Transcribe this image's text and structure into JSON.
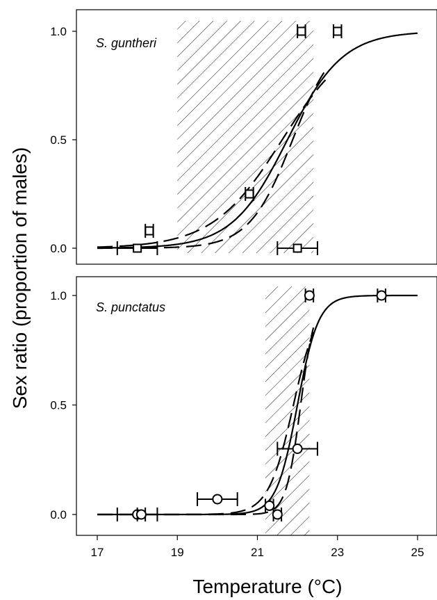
{
  "figure": {
    "ylabel": "Sex ratio (proportion of males)",
    "xlabel": "Temperature (°C)",
    "x_ticks": [
      17,
      19,
      21,
      23,
      25
    ],
    "y_ticks": [
      "0.0",
      "0.5",
      "1.0"
    ]
  },
  "chart_data": [
    {
      "type": "scatter",
      "panel": "top",
      "annotation": "S. guntheri",
      "marker": "square",
      "xlim": [
        16.5,
        25.3
      ],
      "ylim": [
        -0.05,
        1.08
      ],
      "hatched_range": [
        19,
        22.4
      ],
      "points": [
        {
          "x": 18.0,
          "y": 0.0,
          "xerr_lo": 17.5,
          "xerr_hi": 18.5
        },
        {
          "x": 18.3,
          "y": 0.08,
          "xerr_lo": 18.2,
          "xerr_hi": 18.4
        },
        {
          "x": 20.8,
          "y": 0.25,
          "xerr_lo": 20.7,
          "xerr_hi": 20.9
        },
        {
          "x": 22.0,
          "y": 0.0,
          "xerr_lo": 21.5,
          "xerr_hi": 22.5
        },
        {
          "x": 22.1,
          "y": 1.0,
          "xerr_lo": 22.0,
          "xerr_hi": 22.2
        },
        {
          "x": 23.0,
          "y": 1.0,
          "xerr_lo": 22.9,
          "xerr_hi": 23.1
        }
      ],
      "fit": {
        "pivot": 21.75,
        "slope": 1.45,
        "max_x": 25
      },
      "ci_upper": {
        "pivot": 21.62,
        "slope": 1.15,
        "max_x": 22.7
      },
      "ci_lower": {
        "pivot": 21.88,
        "slope": 1.85,
        "max_x": 22.7
      }
    },
    {
      "type": "scatter",
      "panel": "bottom",
      "annotation": "S. punctatus",
      "marker": "circle",
      "xlim": [
        16.5,
        25.3
      ],
      "ylim": [
        -0.08,
        1.08
      ],
      "hatched_range": [
        21.2,
        22.3
      ],
      "points": [
        {
          "x": 18.0,
          "y": 0.0,
          "xerr_lo": 17.5,
          "xerr_hi": 18.5
        },
        {
          "x": 18.1,
          "y": 0.0,
          "xerr_lo": 18.0,
          "xerr_hi": 18.2
        },
        {
          "x": 20.0,
          "y": 0.07,
          "xerr_lo": 19.5,
          "xerr_hi": 20.5
        },
        {
          "x": 21.3,
          "y": 0.04,
          "xerr_lo": 21.2,
          "xerr_hi": 21.4
        },
        {
          "x": 21.5,
          "y": 0.0,
          "xerr_lo": 21.4,
          "xerr_hi": 21.6
        },
        {
          "x": 22.0,
          "y": 0.3,
          "xerr_lo": 21.5,
          "xerr_hi": 22.5
        },
        {
          "x": 22.3,
          "y": 1.0,
          "xerr_lo": 22.2,
          "xerr_hi": 22.4
        },
        {
          "x": 24.1,
          "y": 1.0,
          "xerr_lo": 24.0,
          "xerr_hi": 24.2
        }
      ],
      "fit": {
        "pivot": 22.0,
        "slope": 3.8,
        "max_x": 25
      },
      "ci_upper": {
        "pivot": 21.9,
        "slope": 3.2,
        "max_x": 22.4
      },
      "ci_lower": {
        "pivot": 22.08,
        "slope": 5.5,
        "max_x": 22.4
      }
    }
  ]
}
